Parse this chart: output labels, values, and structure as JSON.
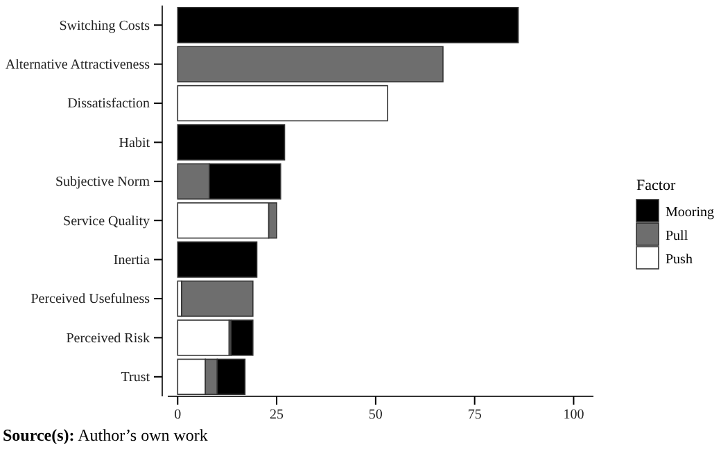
{
  "chart_data": {
    "type": "bar",
    "orientation": "horizontal",
    "stacked": true,
    "categories": [
      "Switching Costs",
      "Alternative Attractiveness",
      "Dissatisfaction",
      "Habit",
      "Subjective Norm",
      "Service Quality",
      "Inertia",
      "Perceived Usefulness",
      "Perceived Risk",
      "Trust"
    ],
    "series": [
      {
        "name": "Push",
        "color": "#ffffff",
        "values": [
          0,
          0,
          53,
          0,
          0,
          23,
          0,
          1,
          13,
          7
        ]
      },
      {
        "name": "Pull",
        "color": "#6e6e6e",
        "values": [
          0,
          67,
          0,
          0,
          8,
          2,
          0,
          18,
          0.5,
          3
        ]
      },
      {
        "name": "Mooring",
        "color": "#000000",
        "values": [
          86,
          0,
          0,
          27,
          18,
          0,
          20,
          0,
          5.5,
          7
        ]
      }
    ],
    "xlim": [
      -2.5,
      105
    ],
    "xticks": [
      0,
      25,
      50,
      75,
      100
    ],
    "grid": false,
    "legend": "right",
    "legend_title": "Factor",
    "annotations": [
      "Source(s): Author’s own work"
    ]
  }
}
